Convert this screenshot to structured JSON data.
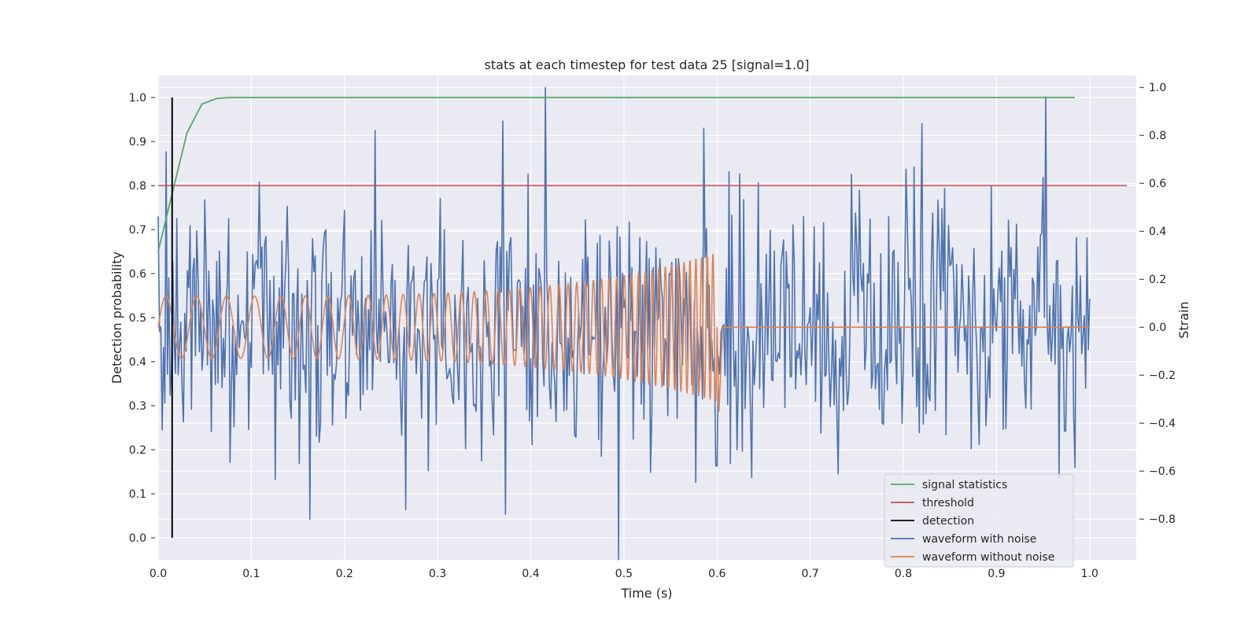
{
  "chart_data": {
    "type": "line",
    "title": "stats at each timestep for test data 25 [signal=1.0]",
    "xlabel": "Time (s)",
    "ylabel": "Detection probability",
    "y2label": "Strain",
    "xlim": [
      0.0,
      1.05
    ],
    "ylim": [
      -0.05,
      1.05
    ],
    "y2lim": [
      -0.97,
      1.05
    ],
    "xticks": [
      "0.0",
      "0.1",
      "0.2",
      "0.3",
      "0.4",
      "0.5",
      "0.6",
      "0.7",
      "0.8",
      "0.9",
      "1.0"
    ],
    "yticks": [
      "0.0",
      "0.1",
      "0.2",
      "0.3",
      "0.4",
      "0.5",
      "0.6",
      "0.7",
      "0.8",
      "0.9",
      "1.0"
    ],
    "y2ticks": [
      "−0.8",
      "−0.6",
      "−0.4",
      "−0.2",
      "0.0",
      "0.2",
      "0.4",
      "0.6",
      "0.8",
      "1.0"
    ],
    "y2tick_values": [
      -0.8,
      -0.6,
      -0.4,
      -0.2,
      0.0,
      0.2,
      0.4,
      0.6,
      0.8,
      1.0
    ],
    "grid": true,
    "legend_position": "lower-right",
    "colors": {
      "background": "#eaeaf2",
      "grid": "#ffffff",
      "signal_statistics": "#55a868",
      "threshold": "#c44e52",
      "detection": "#000000",
      "waveform_with_noise": "#4c72b0",
      "waveform_without_noise": "#dd8452"
    },
    "series": [
      {
        "name": "signal statistics",
        "axis": "left",
        "x": [
          0.0,
          0.016,
          0.031,
          0.047,
          0.063,
          0.078,
          0.1,
          0.2,
          0.4,
          0.6,
          0.8,
          0.984
        ],
        "y": [
          0.65,
          0.79,
          0.92,
          0.985,
          0.998,
          1.0,
          1.0,
          1.0,
          1.0,
          1.0,
          1.0,
          1.0
        ]
      },
      {
        "name": "threshold",
        "axis": "left",
        "x": [
          0.0,
          1.04
        ],
        "y": [
          0.8,
          0.8
        ]
      },
      {
        "name": "detection",
        "axis": "left",
        "x": [
          0.015,
          0.015
        ],
        "y": [
          0.0,
          1.0
        ]
      },
      {
        "name": "waveform with noise",
        "axis": "right",
        "x_start": 0.0,
        "x_end": 1.0,
        "peaks": [
          {
            "x": 0.416,
            "y": 1.0
          },
          {
            "x": 0.953,
            "y": 0.96
          },
          {
            "x": 0.494,
            "y": -0.97
          },
          {
            "x": 0.233,
            "y": 0.82
          },
          {
            "x": 0.37,
            "y": 0.86
          },
          {
            "x": 0.82,
            "y": 0.85
          },
          {
            "x": 0.163,
            "y": -0.8
          },
          {
            "x": 0.265,
            "y": -0.76
          },
          {
            "x": 0.373,
            "y": -0.78
          },
          {
            "x": 0.585,
            "y": 0.83
          }
        ]
      },
      {
        "name": "waveform without noise",
        "axis": "right",
        "x_start": 0.0,
        "merger_time": 0.6,
        "x_end": 1.0,
        "initial_amplitude": 0.13,
        "final_amplitude": 0.31,
        "post_merger_value": 0.0
      }
    ]
  }
}
